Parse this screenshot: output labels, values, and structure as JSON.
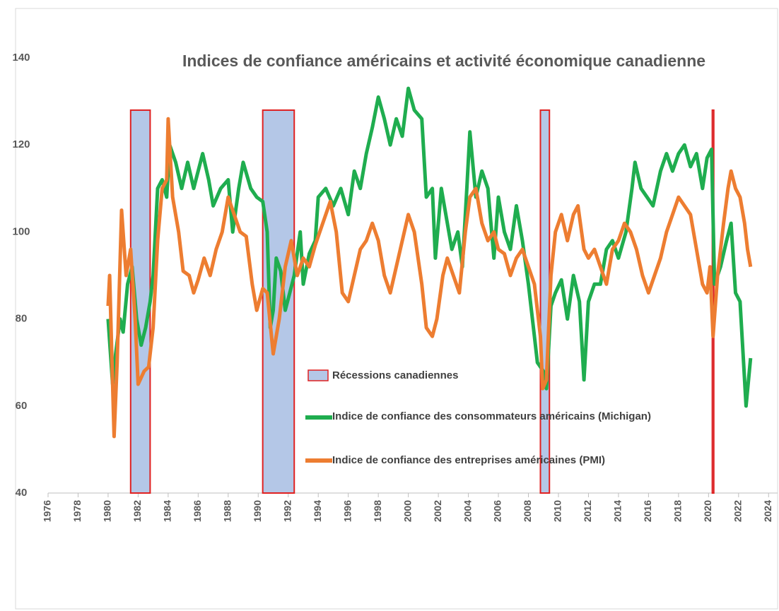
{
  "chart_data": {
    "type": "line",
    "title": "Indices de confiance américains et activité économique canadienne",
    "xlim": [
      1976,
      2024.6
    ],
    "ylim": [
      40,
      140
    ],
    "xticks": [
      1976,
      1978,
      1980,
      1982,
      1984,
      1986,
      1988,
      1990,
      1992,
      1994,
      1996,
      1998,
      2000,
      2002,
      2004,
      2006,
      2008,
      2010,
      2012,
      2014,
      2016,
      2018,
      2020,
      2022,
      2024
    ],
    "yticks": [
      40,
      60,
      80,
      100,
      120,
      140
    ],
    "recessions": {
      "name": "Récessions canadiennes",
      "color": "#b4c7e7",
      "edge_color": "#e02020",
      "value": 128,
      "periods": [
        {
          "start": 1981.5,
          "end": 1982.8
        },
        {
          "start": 1990.3,
          "end": 1992.4
        },
        {
          "start": 2008.8,
          "end": 2009.4
        },
        {
          "start": 2020.25,
          "end": 2020.35
        }
      ]
    },
    "series": [
      {
        "name": "Indice de confiance des consommateurs américains (Michigan)",
        "color": "#1fad4f",
        "x": [
          1980.0,
          1980.3,
          1980.5,
          1980.8,
          1981.0,
          1981.3,
          1981.6,
          1981.9,
          1982.2,
          1982.5,
          1982.8,
          1983.0,
          1983.3,
          1983.6,
          1983.9,
          1984.1,
          1984.5,
          1984.9,
          1985.3,
          1985.7,
          1986.0,
          1986.3,
          1986.7,
          1987.0,
          1987.5,
          1988.0,
          1988.3,
          1988.7,
          1989.0,
          1989.5,
          1989.9,
          1990.3,
          1990.6,
          1990.8,
          1991.0,
          1991.2,
          1991.5,
          1991.8,
          1992.1,
          1992.4,
          1992.8,
          1993.0,
          1993.4,
          1993.8,
          1994.0,
          1994.5,
          1995.0,
          1995.5,
          1996.0,
          1996.4,
          1996.8,
          1997.2,
          1997.6,
          1998.0,
          1998.4,
          1998.8,
          1999.2,
          1999.6,
          2000.0,
          2000.4,
          2000.9,
          2001.2,
          2001.6,
          2001.8,
          2002.2,
          2002.5,
          2002.9,
          2003.3,
          2003.6,
          2003.9,
          2004.1,
          2004.5,
          2004.9,
          2005.3,
          2005.7,
          2006.0,
          2006.4,
          2006.8,
          2007.2,
          2007.6,
          2008.0,
          2008.4,
          2008.6,
          2009.0,
          2009.2,
          2009.5,
          2009.8,
          2010.2,
          2010.6,
          2011.0,
          2011.4,
          2011.7,
          2012.0,
          2012.4,
          2012.8,
          2013.2,
          2013.6,
          2014.0,
          2014.5,
          2014.9,
          2015.1,
          2015.5,
          2015.9,
          2016.3,
          2016.8,
          2017.2,
          2017.6,
          2018.0,
          2018.4,
          2018.8,
          2019.2,
          2019.6,
          2019.9,
          2020.2,
          2020.4,
          2020.8,
          2021.2,
          2021.5,
          2021.8,
          2022.1,
          2022.4,
          2022.5,
          2022.8
        ],
        "values": [
          80,
          65,
          72,
          80,
          77,
          88,
          92,
          80,
          74,
          78,
          84,
          90,
          110,
          112,
          108,
          120,
          116,
          110,
          116,
          110,
          114,
          118,
          112,
          106,
          110,
          112,
          100,
          110,
          116,
          110,
          108,
          107,
          100,
          78,
          82,
          94,
          91,
          82,
          86,
          90,
          100,
          88,
          95,
          98,
          108,
          110,
          106,
          110,
          104,
          114,
          110,
          118,
          124,
          131,
          126,
          120,
          126,
          122,
          133,
          128,
          126,
          108,
          110,
          94,
          110,
          104,
          96,
          100,
          92,
          110,
          123,
          108,
          114,
          110,
          94,
          108,
          100,
          96,
          106,
          98,
          88,
          76,
          70,
          68,
          64,
          83,
          86,
          89,
          80,
          90,
          84,
          66,
          84,
          88,
          88,
          96,
          98,
          94,
          100,
          110,
          116,
          110,
          108,
          106,
          114,
          118,
          114,
          118,
          120,
          115,
          118,
          110,
          117,
          119,
          88,
          92,
          98,
          102,
          86,
          84,
          66,
          60,
          71
        ]
      },
      {
        "name": "Indice de confiance des entreprises américaines (PMI)",
        "color": "#ed7d31",
        "x": [
          1980.0,
          1980.1,
          1980.3,
          1980.4,
          1980.6,
          1980.9,
          1981.2,
          1981.5,
          1981.8,
          1982.0,
          1982.4,
          1982.7,
          1983.0,
          1983.3,
          1983.6,
          1983.9,
          1984.0,
          1984.3,
          1984.7,
          1985.0,
          1985.4,
          1985.7,
          1986.0,
          1986.4,
          1986.8,
          1987.2,
          1987.6,
          1988.0,
          1988.4,
          1988.8,
          1989.2,
          1989.6,
          1989.9,
          1990.3,
          1990.6,
          1991.0,
          1991.4,
          1991.8,
          1992.2,
          1992.6,
          1993.0,
          1993.4,
          1993.8,
          1994.3,
          1994.8,
          1995.2,
          1995.6,
          1996.0,
          1996.4,
          1996.8,
          1997.2,
          1997.6,
          1998.0,
          1998.4,
          1998.8,
          1999.2,
          1999.6,
          2000.0,
          2000.4,
          2000.9,
          2001.2,
          2001.6,
          2001.9,
          2002.3,
          2002.6,
          2003.0,
          2003.4,
          2003.8,
          2004.1,
          2004.5,
          2004.9,
          2005.3,
          2005.7,
          2006.0,
          2006.4,
          2006.8,
          2007.2,
          2007.6,
          2008.0,
          2008.4,
          2008.8,
          2008.95,
          2009.2,
          2009.5,
          2009.8,
          2010.2,
          2010.6,
          2011.0,
          2011.3,
          2011.7,
          2012.0,
          2012.4,
          2012.8,
          2013.2,
          2013.6,
          2014.0,
          2014.4,
          2014.8,
          2015.2,
          2015.6,
          2016.0,
          2016.4,
          2016.8,
          2017.2,
          2017.6,
          2018.0,
          2018.4,
          2018.8,
          2019.2,
          2019.6,
          2019.9,
          2020.1,
          2020.3,
          2020.6,
          2021.0,
          2021.3,
          2021.5,
          2021.8,
          2022.1,
          2022.4,
          2022.6,
          2022.8
        ],
        "values": [
          83,
          90,
          65,
          53,
          70,
          105,
          90,
          96,
          80,
          65,
          68,
          69,
          78,
          98,
          110,
          112,
          126,
          108,
          100,
          91,
          90,
          86,
          89,
          94,
          90,
          96,
          100,
          108,
          104,
          100,
          99,
          88,
          82,
          87,
          86,
          72,
          80,
          92,
          98,
          90,
          94,
          92,
          97,
          102,
          107,
          100,
          86,
          84,
          90,
          96,
          98,
          102,
          98,
          90,
          86,
          92,
          98,
          104,
          100,
          88,
          78,
          76,
          80,
          90,
          94,
          90,
          86,
          100,
          108,
          110,
          102,
          98,
          100,
          96,
          95,
          90,
          94,
          96,
          92,
          88,
          76,
          64,
          66,
          90,
          100,
          104,
          98,
          104,
          106,
          96,
          94,
          96,
          92,
          88,
          96,
          98,
          102,
          100,
          96,
          90,
          86,
          90,
          94,
          100,
          104,
          108,
          106,
          104,
          96,
          88,
          86,
          92,
          76,
          90,
          102,
          110,
          114,
          110,
          108,
          102,
          96,
          92
        ]
      }
    ]
  }
}
